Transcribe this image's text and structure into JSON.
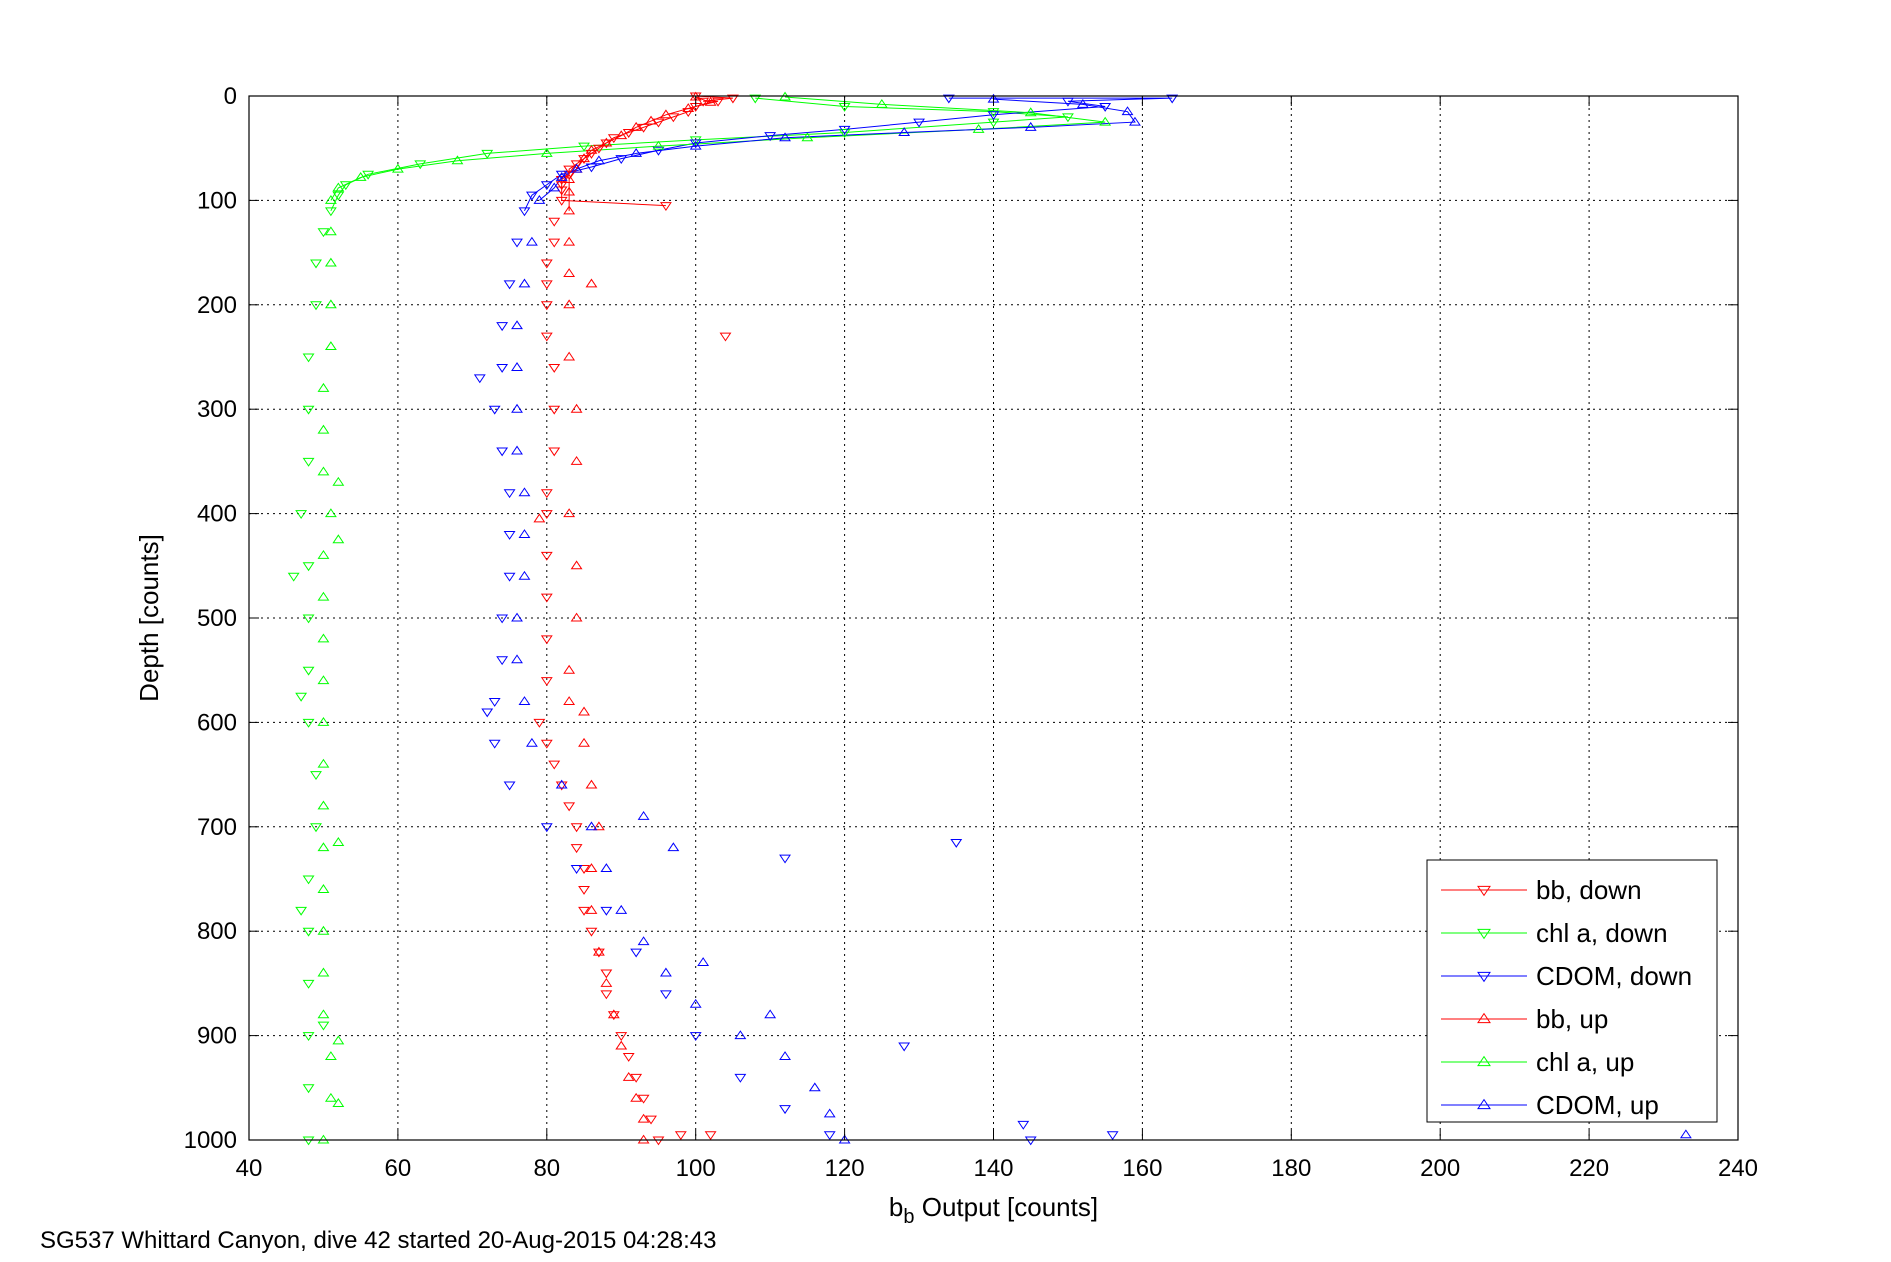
{
  "footer": {
    "caption": "SG537 Whittard Canyon, dive 42 started 20-Aug-2015 04:28:43"
  },
  "chart_data": {
    "type": "scatter",
    "xlabel_main": "b",
    "xlabel_sub": "b",
    "xlabel_rest": " Output [counts]",
    "ylabel": "Depth [counts]",
    "xlim": [
      40,
      240
    ],
    "ylim": [
      0,
      1000
    ],
    "y_reversed": true,
    "grid": true,
    "legend_position": "bottom-right",
    "xticks": [
      40,
      60,
      80,
      100,
      120,
      140,
      160,
      180,
      200,
      220,
      240
    ],
    "yticks": [
      0,
      100,
      200,
      300,
      400,
      500,
      600,
      700,
      800,
      900,
      1000
    ],
    "series": [
      {
        "name": "bb, down",
        "color": "#ff0000",
        "marker": "triangle-down",
        "points": [
          [
            100,
            0
          ],
          [
            101,
            5
          ],
          [
            100,
            10
          ],
          [
            99,
            15
          ],
          [
            97,
            20
          ],
          [
            95,
            25
          ],
          [
            93,
            30
          ],
          [
            91,
            35
          ],
          [
            89,
            40
          ],
          [
            88,
            45
          ],
          [
            87,
            50
          ],
          [
            86,
            55
          ],
          [
            85,
            60
          ],
          [
            84,
            65
          ],
          [
            83,
            70
          ],
          [
            83,
            75
          ],
          [
            82,
            80
          ],
          [
            82,
            85
          ],
          [
            82,
            90
          ],
          [
            82,
            100
          ],
          [
            81,
            120
          ],
          [
            81,
            140
          ],
          [
            80,
            160
          ],
          [
            80,
            180
          ],
          [
            80,
            200
          ],
          [
            80,
            230
          ],
          [
            81,
            260
          ],
          [
            81,
            300
          ],
          [
            81,
            340
          ],
          [
            80,
            380
          ],
          [
            80,
            400
          ],
          [
            80,
            440
          ],
          [
            80,
            480
          ],
          [
            80,
            520
          ],
          [
            80,
            560
          ],
          [
            79,
            600
          ],
          [
            80,
            620
          ],
          [
            81,
            640
          ],
          [
            82,
            660
          ],
          [
            83,
            680
          ],
          [
            84,
            700
          ],
          [
            84,
            720
          ],
          [
            85,
            740
          ],
          [
            85,
            760
          ],
          [
            85,
            780
          ],
          [
            86,
            800
          ],
          [
            87,
            820
          ],
          [
            88,
            840
          ],
          [
            88,
            860
          ],
          [
            89,
            880
          ],
          [
            90,
            900
          ],
          [
            91,
            920
          ],
          [
            92,
            940
          ],
          [
            93,
            960
          ],
          [
            94,
            980
          ],
          [
            95,
            1000
          ],
          [
            96,
            105
          ],
          [
            104,
            230
          ],
          [
            103,
            5
          ],
          [
            105,
            2
          ],
          [
            98,
            995
          ],
          [
            102,
            995
          ]
        ]
      },
      {
        "name": "chl a, down",
        "color": "#00ff00",
        "marker": "triangle-down",
        "points": [
          [
            108,
            2
          ],
          [
            120,
            10
          ],
          [
            140,
            15
          ],
          [
            150,
            20
          ],
          [
            140,
            25
          ],
          [
            120,
            35
          ],
          [
            100,
            42
          ],
          [
            85,
            48
          ],
          [
            72,
            55
          ],
          [
            63,
            65
          ],
          [
            56,
            75
          ],
          [
            53,
            85
          ],
          [
            52,
            95
          ],
          [
            51,
            110
          ],
          [
            50,
            130
          ],
          [
            49,
            160
          ],
          [
            49,
            200
          ],
          [
            48,
            250
          ],
          [
            48,
            300
          ],
          [
            48,
            350
          ],
          [
            47,
            400
          ],
          [
            48,
            450
          ],
          [
            48,
            500
          ],
          [
            48,
            550
          ],
          [
            48,
            600
          ],
          [
            49,
            650
          ],
          [
            49,
            700
          ],
          [
            48,
            750
          ],
          [
            48,
            800
          ],
          [
            48,
            850
          ],
          [
            48,
            900
          ],
          [
            48,
            950
          ],
          [
            48,
            1000
          ],
          [
            47,
            575
          ],
          [
            46,
            460
          ],
          [
            47,
            780
          ],
          [
            50,
            890
          ]
        ]
      },
      {
        "name": "CDOM, down",
        "color": "#0000ff",
        "marker": "triangle-down",
        "points": [
          [
            134,
            2
          ],
          [
            150,
            5
          ],
          [
            164,
            2
          ],
          [
            155,
            10
          ],
          [
            140,
            18
          ],
          [
            130,
            25
          ],
          [
            120,
            32
          ],
          [
            110,
            38
          ],
          [
            100,
            45
          ],
          [
            95,
            52
          ],
          [
            90,
            60
          ],
          [
            86,
            68
          ],
          [
            82,
            75
          ],
          [
            80,
            85
          ],
          [
            78,
            95
          ],
          [
            77,
            110
          ],
          [
            76,
            140
          ],
          [
            75,
            180
          ],
          [
            74,
            220
          ],
          [
            74,
            260
          ],
          [
            73,
            300
          ],
          [
            74,
            340
          ],
          [
            75,
            380
          ],
          [
            75,
            420
          ],
          [
            75,
            460
          ],
          [
            74,
            500
          ],
          [
            74,
            540
          ],
          [
            73,
            580
          ],
          [
            73,
            620
          ],
          [
            75,
            660
          ],
          [
            80,
            700
          ],
          [
            84,
            740
          ],
          [
            88,
            780
          ],
          [
            92,
            820
          ],
          [
            96,
            860
          ],
          [
            100,
            900
          ],
          [
            106,
            940
          ],
          [
            112,
            970
          ],
          [
            118,
            995
          ],
          [
            135,
            715
          ],
          [
            112,
            730
          ],
          [
            128,
            910
          ],
          [
            144,
            985
          ],
          [
            156,
            995
          ],
          [
            145,
            1000
          ],
          [
            72,
            590
          ],
          [
            71,
            270
          ]
        ]
      },
      {
        "name": "bb, up",
        "color": "#ff0000",
        "marker": "triangle-up",
        "points": [
          [
            100,
            1
          ],
          [
            102,
            6
          ],
          [
            99,
            12
          ],
          [
            96,
            18
          ],
          [
            94,
            24
          ],
          [
            92,
            30
          ],
          [
            90,
            38
          ],
          [
            88,
            45
          ],
          [
            86,
            52
          ],
          [
            85,
            60
          ],
          [
            84,
            70
          ],
          [
            83,
            80
          ],
          [
            83,
            92
          ],
          [
            83,
            110
          ],
          [
            83,
            140
          ],
          [
            83,
            170
          ],
          [
            83,
            200
          ],
          [
            83,
            250
          ],
          [
            84,
            300
          ],
          [
            84,
            350
          ],
          [
            83,
            400
          ],
          [
            84,
            450
          ],
          [
            84,
            500
          ],
          [
            83,
            550
          ],
          [
            83,
            580
          ],
          [
            85,
            620
          ],
          [
            86,
            660
          ],
          [
            87,
            700
          ],
          [
            86,
            740
          ],
          [
            86,
            780
          ],
          [
            87,
            820
          ],
          [
            88,
            850
          ],
          [
            89,
            880
          ],
          [
            90,
            910
          ],
          [
            91,
            940
          ],
          [
            92,
            960
          ],
          [
            93,
            980
          ],
          [
            93,
            1000
          ],
          [
            86,
            180
          ],
          [
            85,
            590
          ],
          [
            79,
            405
          ]
        ]
      },
      {
        "name": "chl a, up",
        "color": "#00ff00",
        "marker": "triangle-up",
        "points": [
          [
            112,
            1
          ],
          [
            125,
            8
          ],
          [
            145,
            16
          ],
          [
            155,
            25
          ],
          [
            138,
            32
          ],
          [
            115,
            40
          ],
          [
            95,
            48
          ],
          [
            80,
            55
          ],
          [
            68,
            62
          ],
          [
            60,
            70
          ],
          [
            55,
            78
          ],
          [
            52,
            88
          ],
          [
            51,
            100
          ],
          [
            51,
            130
          ],
          [
            51,
            160
          ],
          [
            51,
            200
          ],
          [
            51,
            240
          ],
          [
            50,
            280
          ],
          [
            50,
            320
          ],
          [
            50,
            360
          ],
          [
            51,
            400
          ],
          [
            50,
            440
          ],
          [
            50,
            480
          ],
          [
            50,
            520
          ],
          [
            50,
            560
          ],
          [
            50,
            600
          ],
          [
            50,
            640
          ],
          [
            50,
            680
          ],
          [
            50,
            720
          ],
          [
            50,
            760
          ],
          [
            50,
            800
          ],
          [
            50,
            840
          ],
          [
            50,
            880
          ],
          [
            51,
            920
          ],
          [
            51,
            960
          ],
          [
            50,
            1000
          ],
          [
            52,
            370
          ],
          [
            52,
            425
          ],
          [
            52,
            715
          ],
          [
            52,
            905
          ],
          [
            52,
            965
          ]
        ]
      },
      {
        "name": "CDOM, up",
        "color": "#0000ff",
        "marker": "triangle-up",
        "points": [
          [
            140,
            3
          ],
          [
            152,
            8
          ],
          [
            158,
            15
          ],
          [
            159,
            25
          ],
          [
            145,
            30
          ],
          [
            128,
            35
          ],
          [
            112,
            40
          ],
          [
            100,
            48
          ],
          [
            92,
            55
          ],
          [
            87,
            62
          ],
          [
            84,
            70
          ],
          [
            82,
            78
          ],
          [
            81,
            88
          ],
          [
            79,
            100
          ],
          [
            78,
            140
          ],
          [
            77,
            180
          ],
          [
            76,
            220
          ],
          [
            76,
            260
          ],
          [
            76,
            300
          ],
          [
            76,
            340
          ],
          [
            77,
            380
          ],
          [
            77,
            420
          ],
          [
            77,
            460
          ],
          [
            76,
            500
          ],
          [
            76,
            540
          ],
          [
            77,
            580
          ],
          [
            78,
            620
          ],
          [
            82,
            660
          ],
          [
            86,
            700
          ],
          [
            88,
            740
          ],
          [
            90,
            780
          ],
          [
            93,
            810
          ],
          [
            96,
            840
          ],
          [
            100,
            870
          ],
          [
            106,
            900
          ],
          [
            112,
            920
          ],
          [
            116,
            950
          ],
          [
            118,
            975
          ],
          [
            120,
            1000
          ],
          [
            93,
            690
          ],
          [
            97,
            720
          ],
          [
            101,
            830
          ],
          [
            110,
            880
          ],
          [
            233,
            995
          ]
        ]
      }
    ]
  }
}
